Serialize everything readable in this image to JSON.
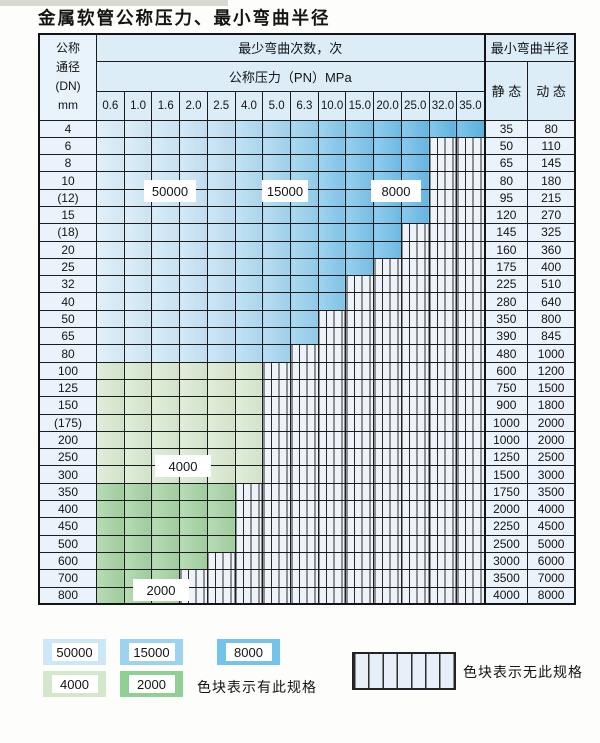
{
  "page": {
    "title": "金属软管公称压力、最小弯曲半径"
  },
  "table": {
    "corner_lines": [
      "公称",
      "通径",
      "(DN)",
      "mm"
    ],
    "bend_count_header": "最少弯曲次数，次",
    "pressure_header": "公称压力（PN）MPa",
    "radius_header": "最小弯曲半径",
    "static_label": "静 态",
    "dynamic_label": "动 态",
    "pressure_columns": [
      "0.6",
      "1.0",
      "1.6",
      "2.0",
      "2.5",
      "4.0",
      "5.0",
      "6.3",
      "10.0",
      "15.0",
      "20.0",
      "25.0",
      "32.0",
      "35.0"
    ],
    "rows": [
      {
        "dn": "4",
        "static": "35",
        "dynamic": "80",
        "colored_through": 14,
        "zone": "blue"
      },
      {
        "dn": "6",
        "static": "50",
        "dynamic": "110",
        "colored_through": 12,
        "zone": "blue"
      },
      {
        "dn": "8",
        "static": "65",
        "dynamic": "145",
        "colored_through": 12,
        "zone": "blue"
      },
      {
        "dn": "10",
        "static": "80",
        "dynamic": "180",
        "colored_through": 12,
        "zone": "blue"
      },
      {
        "dn": "(12)",
        "static": "95",
        "dynamic": "215",
        "colored_through": 12,
        "zone": "blue"
      },
      {
        "dn": "15",
        "static": "120",
        "dynamic": "270",
        "colored_through": 12,
        "zone": "blue"
      },
      {
        "dn": "(18)",
        "static": "145",
        "dynamic": "325",
        "colored_through": 11,
        "zone": "blue"
      },
      {
        "dn": "20",
        "static": "160",
        "dynamic": "360",
        "colored_through": 11,
        "zone": "blue"
      },
      {
        "dn": "25",
        "static": "175",
        "dynamic": "400",
        "colored_through": 10,
        "zone": "blue"
      },
      {
        "dn": "32",
        "static": "225",
        "dynamic": "510",
        "colored_through": 9,
        "zone": "blue"
      },
      {
        "dn": "40",
        "static": "280",
        "dynamic": "640",
        "colored_through": 9,
        "zone": "blue"
      },
      {
        "dn": "50",
        "static": "350",
        "dynamic": "800",
        "colored_through": 8,
        "zone": "blue"
      },
      {
        "dn": "65",
        "static": "390",
        "dynamic": "845",
        "colored_through": 8,
        "zone": "blue"
      },
      {
        "dn": "80",
        "static": "480",
        "dynamic": "1000",
        "colored_through": 7,
        "zone": "blue"
      },
      {
        "dn": "100",
        "static": "600",
        "dynamic": "1200",
        "colored_through": 6,
        "zone": "green-light"
      },
      {
        "dn": "125",
        "static": "750",
        "dynamic": "1500",
        "colored_through": 6,
        "zone": "green-light"
      },
      {
        "dn": "150",
        "static": "900",
        "dynamic": "1800",
        "colored_through": 6,
        "zone": "green-light"
      },
      {
        "dn": "(175)",
        "static": "1000",
        "dynamic": "2000",
        "colored_through": 6,
        "zone": "green-light"
      },
      {
        "dn": "200",
        "static": "1000",
        "dynamic": "2000",
        "colored_through": 6,
        "zone": "green-light"
      },
      {
        "dn": "250",
        "static": "1250",
        "dynamic": "2500",
        "colored_through": 6,
        "zone": "green-light"
      },
      {
        "dn": "300",
        "static": "1500",
        "dynamic": "3000",
        "colored_through": 6,
        "zone": "green-light"
      },
      {
        "dn": "350",
        "static": "1750",
        "dynamic": "3500",
        "colored_through": 5,
        "zone": "green-dark"
      },
      {
        "dn": "400",
        "static": "2000",
        "dynamic": "4000",
        "colored_through": 5,
        "zone": "green-dark"
      },
      {
        "dn": "450",
        "static": "2250",
        "dynamic": "4500",
        "colored_through": 5,
        "zone": "green-dark"
      },
      {
        "dn": "500",
        "static": "2500",
        "dynamic": "5000",
        "colored_through": 5,
        "zone": "green-dark"
      },
      {
        "dn": "600",
        "static": "3000",
        "dynamic": "6000",
        "colored_through": 4,
        "zone": "green-dark"
      },
      {
        "dn": "700",
        "static": "3500",
        "dynamic": "7000",
        "colored_through": 3,
        "zone": "green-dark"
      },
      {
        "dn": "800",
        "static": "4000",
        "dynamic": "8000",
        "colored_through": 3,
        "zone": "green-dark"
      }
    ],
    "zone_labels": {
      "z50000": "50000",
      "z15000": "15000",
      "z8000": "8000",
      "z4000": "4000",
      "z2000": "2000"
    }
  },
  "legend": {
    "swatches": [
      {
        "id": "50000",
        "label": "50000",
        "color": "#cde7f7"
      },
      {
        "id": "15000",
        "label": "15000",
        "color": "#9dd3f0"
      },
      {
        "id": "8000",
        "label": "8000",
        "color": "#73c3eb"
      },
      {
        "id": "4000",
        "label": "4000",
        "color": "#d3e7cb"
      },
      {
        "id": "2000",
        "label": "2000",
        "color": "#90d094"
      }
    ],
    "has_spec_text": "色块表示有此规格",
    "no_spec_text": "色块表示无此规格"
  },
  "colors": {
    "blue_shades": [
      "#d9edf9",
      "#d3eaf8",
      "#cde7f7",
      "#c6e3f5",
      "#bfe0f4",
      "#b1dbf2",
      "#a3d5f0",
      "#94cfee",
      "#84c8ec",
      "#79c3ea",
      "#70bfe9",
      "#68bbe7",
      "#61b8e6",
      "#5cb5e5"
    ],
    "green_light": "#d8e9d0",
    "green_dark": "#a4d2a2",
    "header_bg": "#dcedf8",
    "label_bg": "#eaf3fb",
    "border": "#1c1c1c"
  }
}
